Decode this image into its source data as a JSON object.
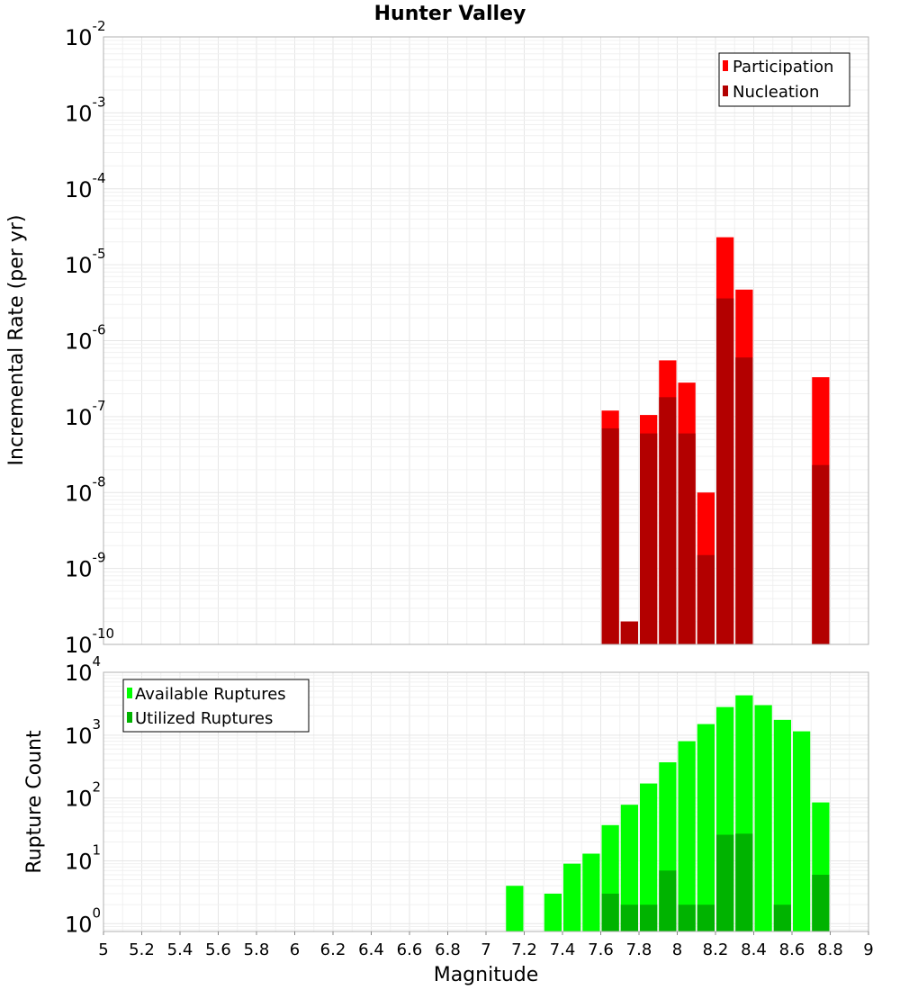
{
  "chart_data": [
    {
      "type": "bar",
      "title": "Hunter Valley",
      "ylabel": "Incremental Rate (per yr)",
      "xlabel": "",
      "yscale": "log",
      "ylim": [
        1e-10,
        0.01
      ],
      "xlim": [
        5,
        9
      ],
      "ytick_exponents": [
        -10,
        -9,
        -8,
        -7,
        -6,
        -5,
        -4,
        -3,
        -2
      ],
      "ytick_base": "10",
      "bin_width": 0.1,
      "legend": {
        "placement": "top-right",
        "entries": [
          "Participation",
          "Nucleation"
        ]
      },
      "series": [
        {
          "name": "Participation",
          "color": "#ff0000",
          "x": [
            7.65,
            7.75,
            7.85,
            7.95,
            8.05,
            8.15,
            8.25,
            8.35,
            8.75
          ],
          "values": [
            1.2e-07,
            2e-10,
            1.05e-07,
            5.5e-07,
            2.8e-07,
            1e-08,
            2.3e-05,
            4.7e-06,
            3.3e-07
          ]
        },
        {
          "name": "Nucleation",
          "color": "#b30000",
          "x": [
            7.65,
            7.75,
            7.85,
            7.95,
            8.05,
            8.15,
            8.25,
            8.35,
            8.75
          ],
          "values": [
            7e-08,
            2e-10,
            6e-08,
            1.8e-07,
            6e-08,
            1.5e-09,
            3.6e-06,
            6e-07,
            2.3e-08
          ]
        }
      ]
    },
    {
      "type": "bar",
      "title": "",
      "ylabel": "Rupture Count",
      "xlabel": "Magnitude",
      "yscale": "log",
      "ylim": [
        0.75,
        10000
      ],
      "xlim": [
        5,
        9
      ],
      "xticks": [
        "5",
        "5.2",
        "5.4",
        "5.6",
        "5.8",
        "6",
        "6.2",
        "6.4",
        "6.6",
        "6.8",
        "7",
        "7.2",
        "7.4",
        "7.6",
        "7.8",
        "8",
        "8.2",
        "8.4",
        "8.6",
        "8.8",
        "9"
      ],
      "ytick_exponents": [
        0,
        1,
        2,
        3,
        4
      ],
      "ytick_base": "10",
      "bin_width": 0.1,
      "legend": {
        "placement": "top-left",
        "entries": [
          "Available Ruptures",
          "Utilized Ruptures"
        ]
      },
      "series": [
        {
          "name": "Available Ruptures",
          "color": "#00ff00",
          "x": [
            7.15,
            7.35,
            7.45,
            7.55,
            7.65,
            7.75,
            7.85,
            7.95,
            8.05,
            8.15,
            8.25,
            8.35,
            8.45,
            8.55,
            8.65,
            8.75
          ],
          "values": [
            4,
            3,
            9,
            13,
            37,
            78,
            170,
            370,
            800,
            1500,
            2800,
            4300,
            3000,
            1750,
            1150,
            85
          ]
        },
        {
          "name": "Utilized Ruptures",
          "color": "#00b300",
          "x": [
            7.65,
            7.75,
            7.85,
            7.95,
            8.05,
            8.15,
            8.25,
            8.35,
            8.55,
            8.75
          ],
          "values": [
            3,
            2,
            2,
            7,
            2,
            2,
            26,
            27,
            2,
            6
          ]
        }
      ]
    }
  ]
}
